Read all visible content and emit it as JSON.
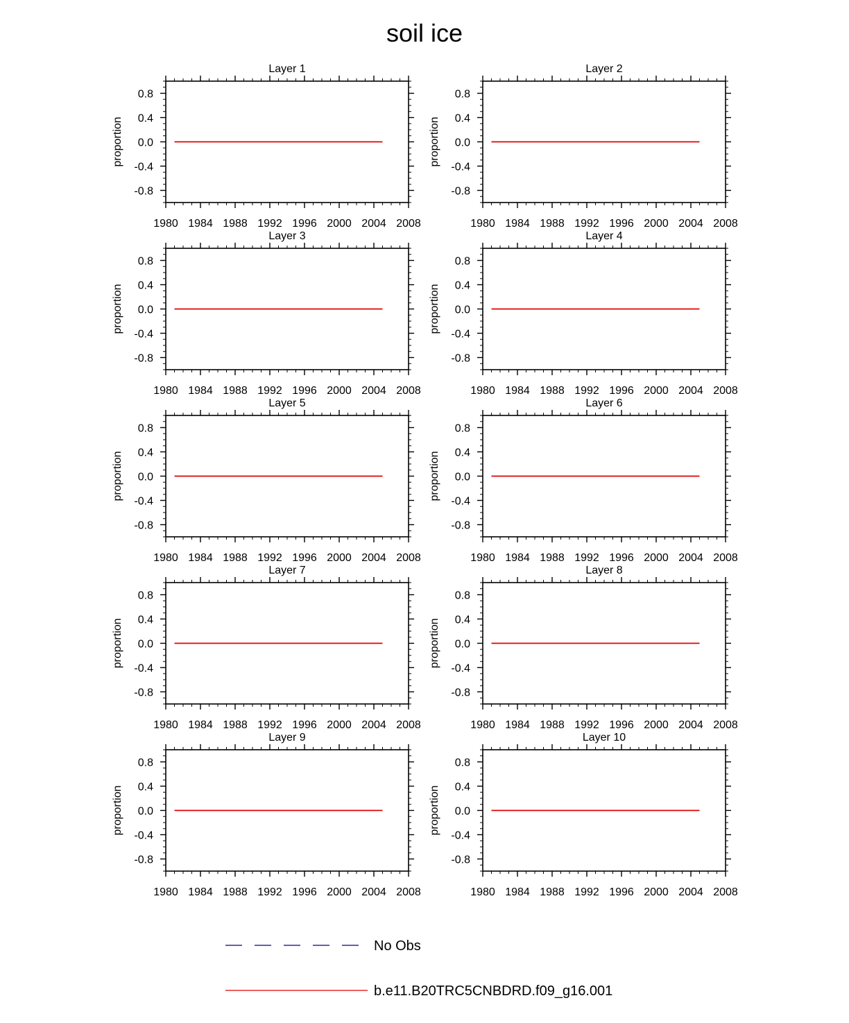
{
  "page_title": "soil ice",
  "colors": {
    "model_line": "#e00000",
    "obs_line": "#000080",
    "axis": "#000000",
    "background": "#ffffff"
  },
  "legend": {
    "placement": "bottom-center",
    "entries": [
      {
        "label": "No Obs",
        "style": "dashed",
        "color": "#000080"
      },
      {
        "label": "b.e11.B20TRC5CNBDRD.f09_g16.001",
        "style": "solid",
        "color": "#e00000"
      }
    ]
  },
  "chart_data": [
    {
      "type": "line",
      "title": "Layer 1",
      "xlabel": "",
      "ylabel": "proportion",
      "xlim": [
        1980,
        2008
      ],
      "ylim": [
        -1,
        1
      ],
      "xticks": [
        1980,
        1984,
        1988,
        1992,
        1996,
        2000,
        2004,
        2008
      ],
      "yticks": [
        0.8,
        0.4,
        0.0,
        -0.4,
        -0.8
      ],
      "ytick_labels": [
        "0.8",
        "0.4",
        "0.0",
        "-0.4",
        "-0.8"
      ],
      "grid": false,
      "series": [
        {
          "name": "b.e11.B20TRC5CNBDRD.f09_g16.001",
          "x": [
            1981,
            2005
          ],
          "y": [
            0,
            0
          ]
        }
      ]
    },
    {
      "type": "line",
      "title": "Layer 2",
      "xlabel": "",
      "ylabel": "proportion",
      "xlim": [
        1980,
        2008
      ],
      "ylim": [
        -1,
        1
      ],
      "xticks": [
        1980,
        1984,
        1988,
        1992,
        1996,
        2000,
        2004,
        2008
      ],
      "yticks": [
        0.8,
        0.4,
        0.0,
        -0.4,
        -0.8
      ],
      "ytick_labels": [
        "0.8",
        "0.4",
        "0.0",
        "-0.4",
        "-0.8"
      ],
      "grid": false,
      "series": [
        {
          "name": "b.e11.B20TRC5CNBDRD.f09_g16.001",
          "x": [
            1981,
            2005
          ],
          "y": [
            0,
            0
          ]
        }
      ]
    },
    {
      "type": "line",
      "title": "Layer 3",
      "xlabel": "",
      "ylabel": "proportion",
      "xlim": [
        1980,
        2008
      ],
      "ylim": [
        -1,
        1
      ],
      "xticks": [
        1980,
        1984,
        1988,
        1992,
        1996,
        2000,
        2004,
        2008
      ],
      "yticks": [
        0.8,
        0.4,
        0.0,
        -0.4,
        -0.8
      ],
      "ytick_labels": [
        "0.8",
        "0.4",
        "0.0",
        "-0.4",
        "-0.8"
      ],
      "grid": false,
      "series": [
        {
          "name": "b.e11.B20TRC5CNBDRD.f09_g16.001",
          "x": [
            1981,
            2005
          ],
          "y": [
            0,
            0
          ]
        }
      ]
    },
    {
      "type": "line",
      "title": "Layer 4",
      "xlabel": "",
      "ylabel": "proportion",
      "xlim": [
        1980,
        2008
      ],
      "ylim": [
        -1,
        1
      ],
      "xticks": [
        1980,
        1984,
        1988,
        1992,
        1996,
        2000,
        2004,
        2008
      ],
      "yticks": [
        0.8,
        0.4,
        0.0,
        -0.4,
        -0.8
      ],
      "ytick_labels": [
        "0.8",
        "0.4",
        "0.0",
        "-0.4",
        "-0.8"
      ],
      "grid": false,
      "series": [
        {
          "name": "b.e11.B20TRC5CNBDRD.f09_g16.001",
          "x": [
            1981,
            2005
          ],
          "y": [
            0,
            0
          ]
        }
      ]
    },
    {
      "type": "line",
      "title": "Layer 5",
      "xlabel": "",
      "ylabel": "proportion",
      "xlim": [
        1980,
        2008
      ],
      "ylim": [
        -1,
        1
      ],
      "xticks": [
        1980,
        1984,
        1988,
        1992,
        1996,
        2000,
        2004,
        2008
      ],
      "yticks": [
        0.8,
        0.4,
        0.0,
        -0.4,
        -0.8
      ],
      "ytick_labels": [
        "0.8",
        "0.4",
        "0.0",
        "-0.4",
        "-0.8"
      ],
      "grid": false,
      "series": [
        {
          "name": "b.e11.B20TRC5CNBDRD.f09_g16.001",
          "x": [
            1981,
            2005
          ],
          "y": [
            0,
            0
          ]
        }
      ]
    },
    {
      "type": "line",
      "title": "Layer 6",
      "xlabel": "",
      "ylabel": "proportion",
      "xlim": [
        1980,
        2008
      ],
      "ylim": [
        -1,
        1
      ],
      "xticks": [
        1980,
        1984,
        1988,
        1992,
        1996,
        2000,
        2004,
        2008
      ],
      "yticks": [
        0.8,
        0.4,
        0.0,
        -0.4,
        -0.8
      ],
      "ytick_labels": [
        "0.8",
        "0.4",
        "0.0",
        "-0.4",
        "-0.8"
      ],
      "grid": false,
      "series": [
        {
          "name": "b.e11.B20TRC5CNBDRD.f09_g16.001",
          "x": [
            1981,
            2005
          ],
          "y": [
            0,
            0
          ]
        }
      ]
    },
    {
      "type": "line",
      "title": "Layer 7",
      "xlabel": "",
      "ylabel": "proportion",
      "xlim": [
        1980,
        2008
      ],
      "ylim": [
        -1,
        1
      ],
      "xticks": [
        1980,
        1984,
        1988,
        1992,
        1996,
        2000,
        2004,
        2008
      ],
      "yticks": [
        0.8,
        0.4,
        0.0,
        -0.4,
        -0.8
      ],
      "ytick_labels": [
        "0.8",
        "0.4",
        "0.0",
        "-0.4",
        "-0.8"
      ],
      "grid": false,
      "series": [
        {
          "name": "b.e11.B20TRC5CNBDRD.f09_g16.001",
          "x": [
            1981,
            2005
          ],
          "y": [
            0,
            0
          ]
        }
      ]
    },
    {
      "type": "line",
      "title": "Layer 8",
      "xlabel": "",
      "ylabel": "proportion",
      "xlim": [
        1980,
        2008
      ],
      "ylim": [
        -1,
        1
      ],
      "xticks": [
        1980,
        1984,
        1988,
        1992,
        1996,
        2000,
        2004,
        2008
      ],
      "yticks": [
        0.8,
        0.4,
        0.0,
        -0.4,
        -0.8
      ],
      "ytick_labels": [
        "0.8",
        "0.4",
        "0.0",
        "-0.4",
        "-0.8"
      ],
      "grid": false,
      "series": [
        {
          "name": "b.e11.B20TRC5CNBDRD.f09_g16.001",
          "x": [
            1981,
            2005
          ],
          "y": [
            0,
            0
          ]
        }
      ]
    },
    {
      "type": "line",
      "title": "Layer 9",
      "xlabel": "",
      "ylabel": "proportion",
      "xlim": [
        1980,
        2008
      ],
      "ylim": [
        -1,
        1
      ],
      "xticks": [
        1980,
        1984,
        1988,
        1992,
        1996,
        2000,
        2004,
        2008
      ],
      "yticks": [
        0.8,
        0.4,
        0.0,
        -0.4,
        -0.8
      ],
      "ytick_labels": [
        "0.8",
        "0.4",
        "0.0",
        "-0.4",
        "-0.8"
      ],
      "grid": false,
      "series": [
        {
          "name": "b.e11.B20TRC5CNBDRD.f09_g16.001",
          "x": [
            1981,
            2005
          ],
          "y": [
            0,
            0
          ]
        }
      ]
    },
    {
      "type": "line",
      "title": "Layer 10",
      "xlabel": "",
      "ylabel": "proportion",
      "xlim": [
        1980,
        2008
      ],
      "ylim": [
        -1,
        1
      ],
      "xticks": [
        1980,
        1984,
        1988,
        1992,
        1996,
        2000,
        2004,
        2008
      ],
      "yticks": [
        0.8,
        0.4,
        0.0,
        -0.4,
        -0.8
      ],
      "ytick_labels": [
        "0.8",
        "0.4",
        "0.0",
        "-0.4",
        "-0.8"
      ],
      "grid": false,
      "series": [
        {
          "name": "b.e11.B20TRC5CNBDRD.f09_g16.001",
          "x": [
            1981,
            2005
          ],
          "y": [
            0,
            0
          ]
        }
      ]
    }
  ]
}
